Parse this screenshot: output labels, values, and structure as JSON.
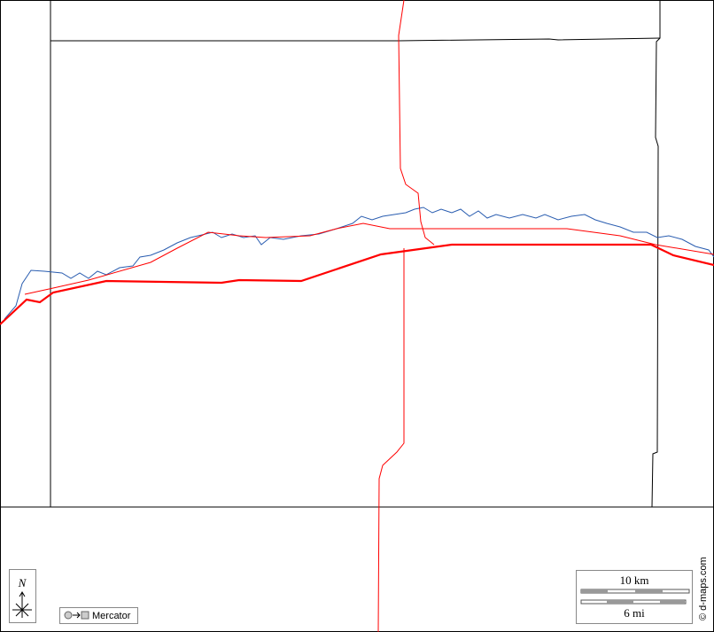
{
  "compass": {
    "label": "N"
  },
  "projection": {
    "label": "Mercator"
  },
  "scale": {
    "km": "10 km",
    "mi": "6 mi"
  },
  "credit": "© d-maps.com"
}
